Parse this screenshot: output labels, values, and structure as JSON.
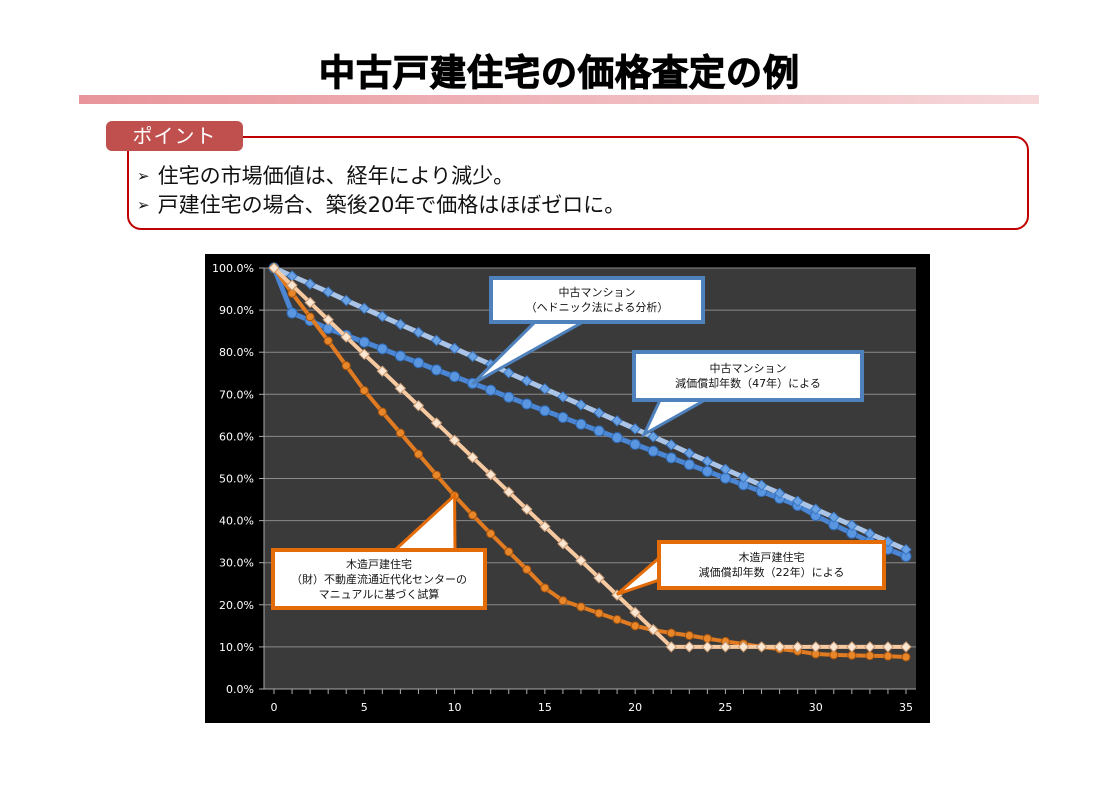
{
  "page": {
    "title": "中古戸建住宅の価格査定の例",
    "point_label": "ポイント",
    "bullets": [
      "住宅の市場価値は、経年により減少。",
      "戸建住宅の場合、築後20年で価格はほぼゼロに。"
    ],
    "bullet_icon": "arrowhead-bullet-icon"
  },
  "colors": {
    "accent_red": "#c00000",
    "tab_red": "#c0504d",
    "chart_bg": "#3a3a3a",
    "hedonic_blue": "#4a86d4",
    "linear47_blue": "#a9c4e6",
    "wooden_manual_orange": "#e07b22",
    "wooden_linear22_peach": "#f7c9a0"
  },
  "callouts": [
    {
      "id": "hedonic",
      "lines": [
        "中古マンション",
        "（ヘドニック法による分析）"
      ],
      "color": "blue"
    },
    {
      "id": "linear47",
      "lines": [
        "中古マンション",
        "減価償却年数（47年）による"
      ],
      "color": "blue"
    },
    {
      "id": "manual",
      "lines": [
        "木造戸建住宅",
        "（財）不動産流通近代化センターの",
        "マニュアルに基づく試算"
      ],
      "color": "orange"
    },
    {
      "id": "linear22",
      "lines": [
        "木造戸建住宅",
        "減価償却年数（22年）による"
      ],
      "color": "orange"
    }
  ],
  "chart_data": {
    "type": "line",
    "title": "",
    "xlabel": "",
    "ylabel": "",
    "xlim": [
      0,
      35
    ],
    "ylim": [
      0,
      100
    ],
    "x_ticks": [
      0,
      5,
      10,
      15,
      20,
      25,
      30,
      35
    ],
    "y_ticks": [
      "0.0%",
      "10.0%",
      "20.0%",
      "30.0%",
      "40.0%",
      "50.0%",
      "60.0%",
      "70.0%",
      "80.0%",
      "90.0%",
      "100.0%"
    ],
    "grid": true,
    "legend": "callouts",
    "x": [
      0,
      1,
      2,
      3,
      4,
      5,
      6,
      7,
      8,
      9,
      10,
      11,
      12,
      13,
      14,
      15,
      16,
      17,
      18,
      19,
      20,
      21,
      22,
      23,
      24,
      25,
      26,
      27,
      28,
      29,
      30,
      31,
      32,
      33,
      34,
      35
    ],
    "series": [
      {
        "name": "中古マンション（ヘドニック法による分析）",
        "marker": "circle",
        "values": [
          100,
          89.3,
          87.5,
          85.6,
          84.0,
          82.4,
          80.8,
          79.1,
          77.5,
          75.8,
          74.2,
          72.6,
          71.0,
          69.3,
          67.7,
          66.1,
          64.5,
          62.9,
          61.3,
          59.7,
          58.1,
          56.5,
          54.9,
          53.3,
          51.7,
          50.1,
          48.5,
          46.9,
          45.3,
          43.6,
          41.2,
          39.0,
          37.0,
          35.0,
          33.2,
          31.5
        ]
      },
      {
        "name": "中古マンション 減価償却年数（47年）による",
        "marker": "diamond",
        "values": [
          100,
          98.1,
          96.2,
          94.3,
          92.3,
          90.4,
          88.5,
          86.6,
          84.7,
          82.8,
          80.9,
          79.0,
          77.1,
          75.1,
          73.2,
          71.3,
          69.4,
          67.5,
          65.6,
          63.7,
          61.8,
          59.9,
          58.0,
          56.0,
          54.1,
          52.2,
          50.3,
          48.4,
          46.5,
          44.6,
          42.7,
          40.8,
          38.9,
          36.9,
          35.0,
          33.1
        ]
      },
      {
        "name": "木造戸建住宅（財）不動産流通近代化センターのマニュアルに基づく試算",
        "marker": "circle",
        "values": [
          100,
          94.0,
          88.4,
          82.7,
          76.8,
          70.9,
          65.8,
          60.8,
          55.8,
          50.8,
          45.9,
          41.3,
          36.9,
          32.6,
          28.4,
          24.0,
          21.0,
          19.5,
          18.0,
          16.5,
          15.0,
          14.0,
          13.3,
          12.7,
          12.0,
          11.3,
          10.7,
          10.0,
          9.5,
          9.0,
          8.3,
          8.1,
          8.0,
          7.9,
          7.8,
          7.6
        ]
      },
      {
        "name": "木造戸建住宅 減価償却年数（22年）による",
        "marker": "diamond",
        "values": [
          100,
          95.9,
          91.8,
          87.7,
          83.6,
          79.5,
          75.5,
          71.4,
          67.3,
          63.2,
          59.1,
          55.0,
          50.9,
          46.8,
          42.7,
          38.6,
          34.5,
          30.5,
          26.4,
          22.3,
          18.2,
          14.1,
          10.0,
          10.0,
          10.0,
          10.0,
          10.0,
          10.0,
          10.0,
          10.0,
          10.0,
          10.0,
          10.0,
          10.0,
          10.0,
          10.0
        ]
      }
    ]
  }
}
